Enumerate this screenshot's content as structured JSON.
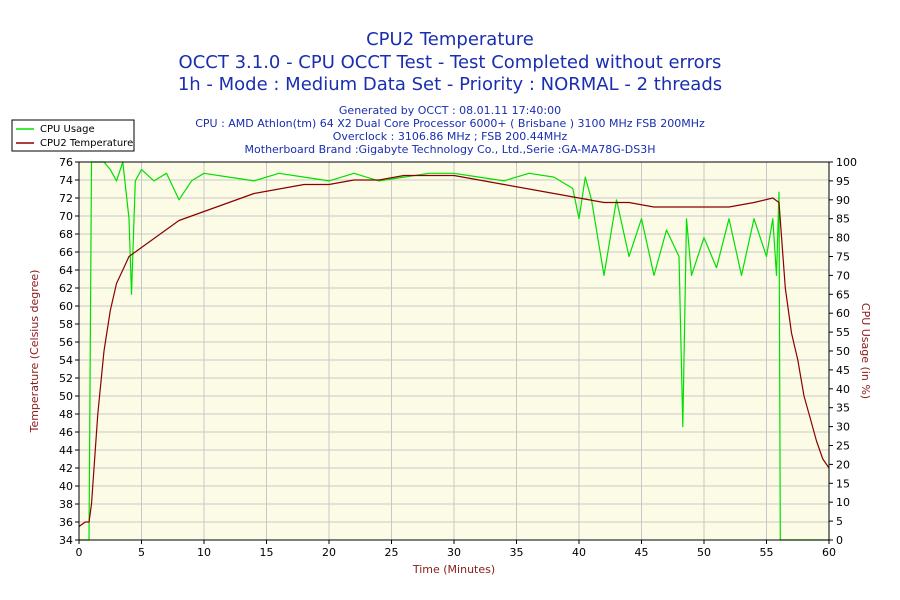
{
  "chart_data": {
    "type": "line",
    "title": "CPU2 Temperature",
    "subtitle_lines": [
      "OCCT 3.1.0 - CPU OCCT Test - Test Completed without errors",
      "1h - Mode : Medium Data Set - Priority : NORMAL - 2 threads"
    ],
    "info_lines": [
      "Generated by OCCT : 08.01.11 17:40:00",
      "CPU : AMD Athlon(tm) 64 X2 Dual Core Processor 6000+ ( Brisbane ) 3100 MHz FSB 200MHz",
      "Overclock : 3106.86 MHz ; FSB 200.44MHz",
      "Motherboard Brand :Gigabyte Technology Co., Ltd.,Serie :GA-MA78G-DS3H"
    ],
    "xlabel": "Time (Minutes)",
    "ylabel_left": "Temperature (Celsius degree)",
    "ylabel_right": "CPU Usage (in %)",
    "xlim": [
      0,
      60
    ],
    "ylim_left": [
      34,
      76
    ],
    "ylim_right": [
      0,
      100
    ],
    "x_ticks": [
      "0",
      "5",
      "10",
      "15",
      "20",
      "25",
      "30",
      "35",
      "40",
      "45",
      "50",
      "55",
      "60"
    ],
    "y_left_ticks": [
      "34",
      "36",
      "38",
      "40",
      "42",
      "44",
      "46",
      "48",
      "50",
      "52",
      "54",
      "56",
      "58",
      "60",
      "62",
      "64",
      "66",
      "68",
      "70",
      "72",
      "74",
      "76"
    ],
    "y_right_ticks": [
      "0",
      "5",
      "10",
      "15",
      "20",
      "25",
      "30",
      "35",
      "40",
      "45",
      "50",
      "55",
      "60",
      "65",
      "70",
      "75",
      "80",
      "85",
      "90",
      "95",
      "100"
    ],
    "grid": true,
    "legend_position": "top-left",
    "colors": {
      "cpu_usage": "#00e000",
      "cpu2_temperature": "#8b0000",
      "plot_background": "#fbfbe6",
      "grid": "#c8c8c8",
      "title_text": "#1a2eb0",
      "axis_label": "#8b1a1a"
    },
    "series": [
      {
        "name": "CPU Usage",
        "axis": "right",
        "x": [
          0,
          0.8,
          1.0,
          1.2,
          1.5,
          2,
          2.5,
          3,
          3.5,
          4,
          4.2,
          4.5,
          5,
          6,
          7,
          8,
          9,
          10,
          12,
          14,
          16,
          18,
          20,
          22,
          24,
          26,
          28,
          30,
          32,
          34,
          36,
          38,
          39.5,
          40,
          40.5,
          41,
          42,
          43,
          44,
          45,
          46,
          47,
          48,
          48.3,
          48.6,
          49,
          50,
          51,
          52,
          53,
          54,
          55,
          55.5,
          55.8,
          56,
          56.1,
          57,
          58,
          59,
          60
        ],
        "y": [
          0,
          0,
          100,
          100,
          100,
          100,
          98,
          95,
          100,
          85,
          65,
          95,
          98,
          95,
          97,
          90,
          95,
          97,
          96,
          95,
          97,
          96,
          95,
          97,
          95,
          96,
          97,
          97,
          96,
          95,
          97,
          96,
          93,
          85,
          96,
          90,
          70,
          90,
          75,
          85,
          70,
          82,
          75,
          30,
          85,
          70,
          80,
          72,
          85,
          70,
          85,
          75,
          85,
          70,
          92,
          0,
          0,
          0,
          0,
          0
        ]
      },
      {
        "name": "CPU2 Temperature",
        "axis": "left",
        "x": [
          0,
          0.5,
          0.8,
          1.0,
          1.5,
          2,
          2.5,
          3,
          3.5,
          4,
          5,
          6,
          7,
          8,
          9,
          10,
          12,
          14,
          16,
          18,
          20,
          22,
          24,
          26,
          28,
          30,
          32,
          34,
          36,
          38,
          40,
          42,
          44,
          46,
          48,
          50,
          52,
          54,
          55.5,
          56,
          56.5,
          57,
          57.5,
          58,
          58.5,
          59,
          59.5,
          60
        ],
        "y": [
          35.5,
          36,
          36,
          38,
          48,
          55,
          59.5,
          62.5,
          64,
          65.5,
          66.5,
          67.5,
          68.5,
          69.5,
          70,
          70.5,
          71.5,
          72.5,
          73,
          73.5,
          73.5,
          74,
          74,
          74.5,
          74.5,
          74.5,
          74,
          73.5,
          73,
          72.5,
          72,
          71.5,
          71.5,
          71,
          71,
          71,
          71,
          71.5,
          72,
          71.5,
          62,
          57,
          54,
          50,
          47.5,
          45,
          43,
          42
        ]
      }
    ]
  }
}
